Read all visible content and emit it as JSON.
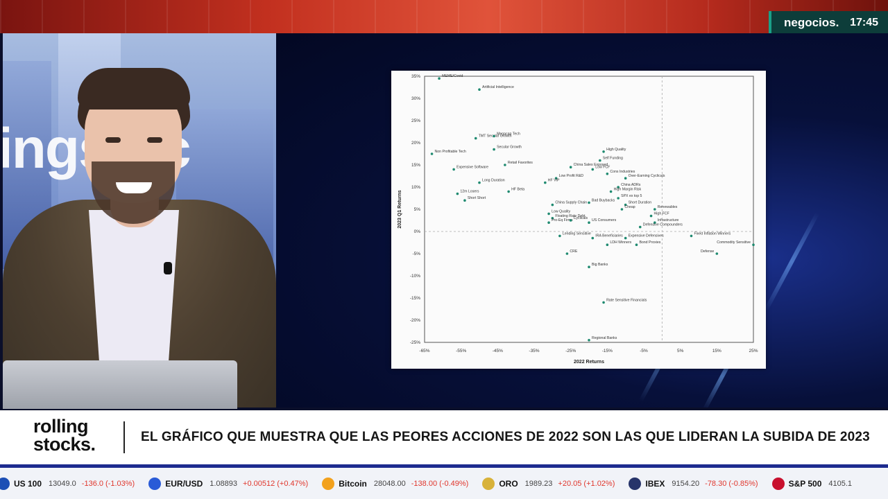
{
  "brand": {
    "name": "negocios.",
    "time": "17:45"
  },
  "studio_text": "ingstoc",
  "logo": {
    "line1": "rolling",
    "line2": "stocks."
  },
  "headline": "EL GRÁFICO QUE MUESTRA QUE LAS PEORES ACCIONES DE 2022 SON LAS QUE LIDERAN LA SUBIDA DE 2023",
  "colors": {
    "accent": "#1aa088",
    "ticker_border": "#1d2b8f",
    "negative": "#e0362c",
    "positive": "#17a34a",
    "point": "#1f8a70"
  },
  "ticker": [
    {
      "icon": "us-flag-icon",
      "name": "US 100",
      "value": "13049.0",
      "change": "-136.0 (-1.03%)",
      "up": false,
      "color": "#1d4fb5"
    },
    {
      "icon": "euro-icon",
      "name": "EUR/USD",
      "value": "1.08893",
      "change": "+0.00512 (+0.47%)",
      "up": false,
      "color": "#2a5bd7"
    },
    {
      "icon": "bitcoin-icon",
      "name": "Bitcoin",
      "value": "28048.00",
      "change": "-138.00 (-0.49%)",
      "up": false,
      "color": "#f2a11d"
    },
    {
      "icon": "gold-icon",
      "name": "ORO",
      "value": "1989.23",
      "change": "+20.05 (+1.02%)",
      "up": false,
      "color": "#d8b23a"
    },
    {
      "icon": "spain-flag-icon",
      "name": "IBEX",
      "value": "9154.20",
      "change": "-78.30 (-0.85%)",
      "up": false,
      "color": "#27346a"
    },
    {
      "icon": "us-flag-icon",
      "name": "S&P 500",
      "value": "4105.1",
      "change": "",
      "up": false,
      "color": "#c8102e"
    }
  ],
  "chart_data": {
    "type": "scatter",
    "xlabel": "2022 Returns",
    "ylabel": "2023 Q1 Returns",
    "xlim": [
      -65,
      25
    ],
    "ylim": [
      -25,
      35
    ],
    "xticks": [
      "-65%",
      "-55%",
      "-45%",
      "-35%",
      "-25%",
      "-15%",
      "-5%",
      "5%",
      "15%",
      "25%"
    ],
    "yticks": [
      "35%",
      "30%",
      "25%",
      "20%",
      "15%",
      "10%",
      "5%",
      "0%",
      "-5%",
      "-10%",
      "-15%",
      "-20%",
      "-25%"
    ],
    "grid": false,
    "points": [
      {
        "label": "MEME/Covid",
        "x": -61,
        "y": 34.5
      },
      {
        "label": "Artificial Intelligence",
        "x": -50,
        "y": 32
      },
      {
        "label": "TMT Secular Growth",
        "x": -51,
        "y": 21
      },
      {
        "label": "Megacap Tech",
        "x": -46,
        "y": 21.5
      },
      {
        "label": "Secular Growth",
        "x": -46,
        "y": 18.5
      },
      {
        "label": "Non Profitable Tech",
        "x": -63,
        "y": 17.5
      },
      {
        "label": "Expensive Software",
        "x": -57,
        "y": 14
      },
      {
        "label": "Retail Favorites",
        "x": -43,
        "y": 15
      },
      {
        "label": "China Sales Exposed",
        "x": -25,
        "y": 14.5
      },
      {
        "label": "Low Profit R&D",
        "x": -29,
        "y": 12
      },
      {
        "label": "HF VIP",
        "x": -32,
        "y": 11
      },
      {
        "label": "Long Duration",
        "x": -50,
        "y": 11
      },
      {
        "label": "HF Beta",
        "x": -42,
        "y": 9
      },
      {
        "label": "12m Losers",
        "x": -56,
        "y": 8.5
      },
      {
        "label": "Short Short",
        "x": -54,
        "y": 7
      },
      {
        "label": "China Supply Chain",
        "x": -30,
        "y": 6
      },
      {
        "label": "Low Quality",
        "x": -31,
        "y": 4
      },
      {
        "label": "Floating Rate Debt",
        "x": -30,
        "y": 3
      },
      {
        "label": "Pro-Eq Firms",
        "x": -31,
        "y": 2
      },
      {
        "label": "High Quality",
        "x": -16,
        "y": 18
      },
      {
        "label": "Self Funding",
        "x": -17,
        "y": 16
      },
      {
        "label": "Low FCF",
        "x": -19,
        "y": 14
      },
      {
        "label": "Cons Industries",
        "x": -15,
        "y": 13
      },
      {
        "label": "Over-Earning Cyclicals",
        "x": -10,
        "y": 12
      },
      {
        "label": "China ADRs",
        "x": -12,
        "y": 10
      },
      {
        "label": "High Margin Risk",
        "x": -14,
        "y": 9
      },
      {
        "label": "Bad Buybacks",
        "x": -20,
        "y": 6.5
      },
      {
        "label": "SPX ex top 5",
        "x": -12,
        "y": 7.5
      },
      {
        "label": "Short Duration",
        "x": -10,
        "y": 6
      },
      {
        "label": "Cheap",
        "x": -11,
        "y": 5
      },
      {
        "label": "Renewables",
        "x": -2,
        "y": 5
      },
      {
        "label": "High FCF",
        "x": -3,
        "y": 3.5
      },
      {
        "label": "Infrastructure",
        "x": -2,
        "y": 2
      },
      {
        "label": "Defensive Compounders",
        "x": -6,
        "y": 1
      },
      {
        "label": "Cyclicals",
        "x": -25,
        "y": 2.5
      },
      {
        "label": "US Consumers",
        "x": -20,
        "y": 2
      },
      {
        "label": "Lending Sensitive",
        "x": -28,
        "y": -1
      },
      {
        "label": "IRA Beneficiaries",
        "x": -19,
        "y": -1.5
      },
      {
        "label": "Expensive Defensives",
        "x": -10,
        "y": -1.5
      },
      {
        "label": "Fixed Inflation Winners",
        "x": 8,
        "y": -1
      },
      {
        "label": "Commodity Sensitive",
        "x": 25,
        "y": -3
      },
      {
        "label": "Defense",
        "x": 15,
        "y": -5
      },
      {
        "label": "LDH Winners",
        "x": -15,
        "y": -3
      },
      {
        "label": "Bond Proxies",
        "x": -7,
        "y": -3
      },
      {
        "label": "CRE",
        "x": -26,
        "y": -5
      },
      {
        "label": "Big Banks",
        "x": -20,
        "y": -8
      },
      {
        "label": "Rate Sensitive Financials",
        "x": -16,
        "y": -16
      },
      {
        "label": "Regional Banks",
        "x": -20,
        "y": -24.5
      }
    ]
  }
}
